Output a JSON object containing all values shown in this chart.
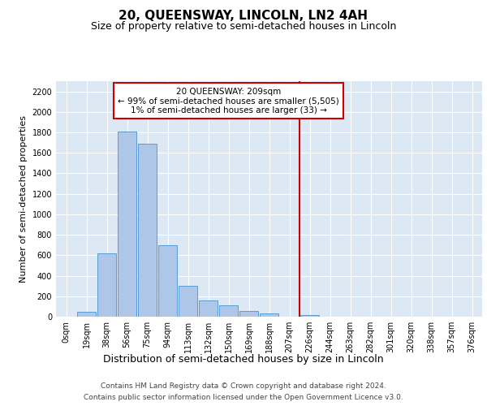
{
  "title": "20, QUEENSWAY, LINCOLN, LN2 4AH",
  "subtitle": "Size of property relative to semi-detached houses in Lincoln",
  "xlabel": "Distribution of semi-detached houses by size in Lincoln",
  "ylabel": "Number of semi-detached properties",
  "footer_line1": "Contains HM Land Registry data © Crown copyright and database right 2024.",
  "footer_line2": "Contains public sector information licensed under the Open Government Licence v3.0.",
  "bar_labels": [
    "0sqm",
    "19sqm",
    "38sqm",
    "56sqm",
    "75sqm",
    "94sqm",
    "113sqm",
    "132sqm",
    "150sqm",
    "169sqm",
    "188sqm",
    "207sqm",
    "226sqm",
    "244sqm",
    "263sqm",
    "282sqm",
    "301sqm",
    "320sqm",
    "338sqm",
    "357sqm",
    "376sqm"
  ],
  "bar_values": [
    0,
    50,
    620,
    1810,
    1690,
    700,
    300,
    160,
    110,
    55,
    30,
    0,
    15,
    0,
    0,
    0,
    0,
    0,
    0,
    0,
    0
  ],
  "bar_color": "#aec6e8",
  "bar_edge_color": "#5b9bd5",
  "property_line_label": "20 QUEENSWAY: 209sqm",
  "annotation_smaller": "← 99% of semi-detached houses are smaller (5,505)",
  "annotation_larger": "1% of semi-detached houses are larger (33) →",
  "annotation_box_color": "#cc0000",
  "ylim": [
    0,
    2300
  ],
  "yticks": [
    0,
    200,
    400,
    600,
    800,
    1000,
    1200,
    1400,
    1600,
    1800,
    2000,
    2200
  ],
  "plot_bg_color": "#dce9f5",
  "fig_bg_color": "#ffffff",
  "grid_color": "#ffffff",
  "title_fontsize": 11,
  "subtitle_fontsize": 9,
  "xlabel_fontsize": 9,
  "ylabel_fontsize": 8,
  "tick_fontsize": 7,
  "annotation_fontsize": 7.5,
  "footer_fontsize": 6.5
}
